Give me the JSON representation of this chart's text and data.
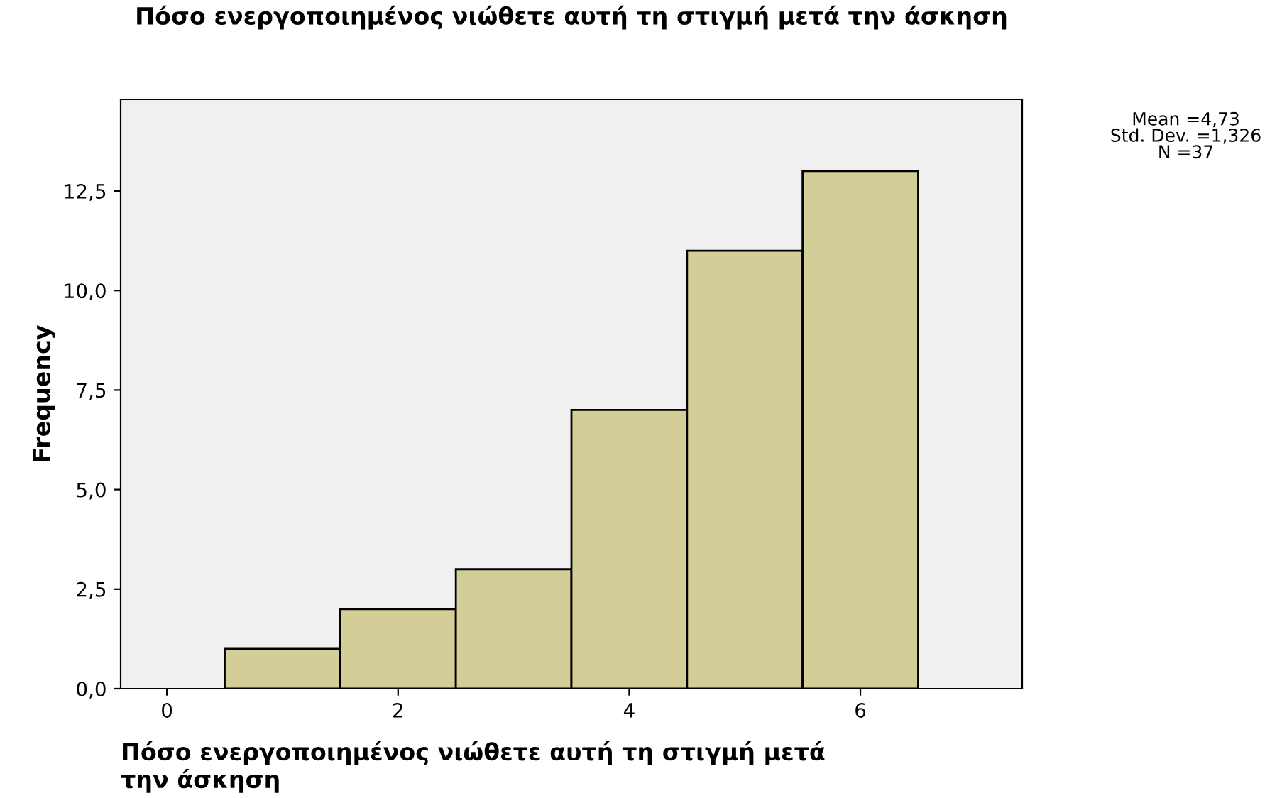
{
  "chart_data": {
    "type": "histogram",
    "title": "Πόσο ενεργοποιημένος νιώθετε αυτή τη στιγμή μετά την άσκηση",
    "xlabel": "Πόσο ενεργοποιημένος νιώθετε αυτή τη στιγμή μετά\nτην άσκηση",
    "ylabel": "Frequency",
    "bins": [
      0.5,
      1.5,
      2.5,
      3.5,
      4.5,
      5.5,
      6.5
    ],
    "values": [
      1,
      2,
      3,
      7,
      11,
      13
    ],
    "color": "#d3ce97",
    "xlim": [
      -0.4,
      7.4
    ],
    "xticks": [
      0,
      2,
      4,
      6
    ],
    "ylim": [
      0,
      14.8
    ],
    "yticks": [
      {
        "value": 0,
        "label": "0,0"
      },
      {
        "value": 2.5,
        "label": "2,5"
      },
      {
        "value": 5,
        "label": "5,0"
      },
      {
        "value": 7.5,
        "label": "7,5"
      },
      {
        "value": 10,
        "label": "10,0"
      },
      {
        "value": 12.5,
        "label": "12,5"
      }
    ],
    "annotations": [
      "Mean =4,73",
      "Std. Dev. =1,326",
      "N =37"
    ],
    "grid": false,
    "legend": false
  }
}
